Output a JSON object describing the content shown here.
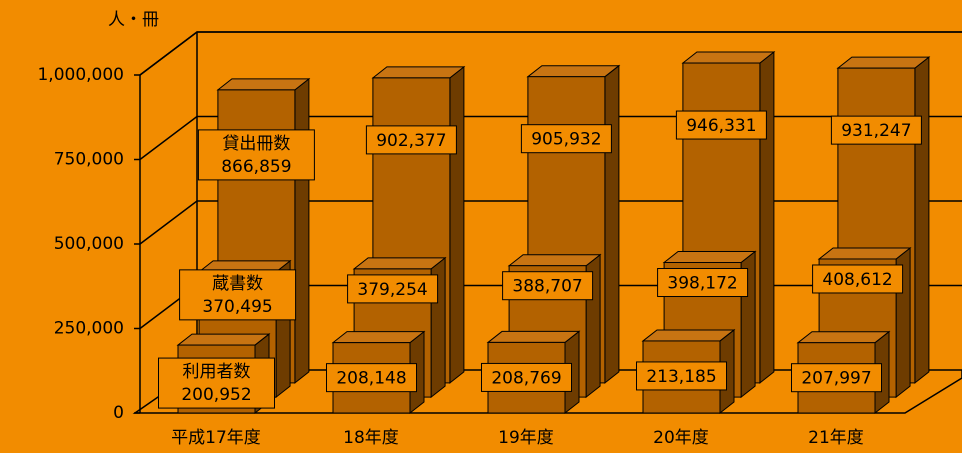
{
  "chart_data": {
    "type": "bar3d",
    "y_axis_label": "人・冊",
    "categories": [
      "平成17年度",
      "18年度",
      "19年度",
      "20年度",
      "21年度"
    ],
    "series": [
      {
        "name": "貸出冊数",
        "color": "#b36200",
        "values": [
          866859,
          902377,
          905932,
          946331,
          931247
        ],
        "value_labels": [
          "866,859",
          "902,377",
          "905,932",
          "946,331",
          "931,247"
        ]
      },
      {
        "name": "蔵書数",
        "color": "#b36200",
        "values": [
          370495,
          379254,
          388707,
          398172,
          408612
        ],
        "value_labels": [
          "370,495",
          "379,254",
          "388,707",
          "398,172",
          "408,612"
        ]
      },
      {
        "name": "利用者数",
        "color": "#b36200",
        "values": [
          200952,
          208148,
          208769,
          213185,
          207997
        ],
        "value_labels": [
          "200,952",
          "208,148",
          "208,769",
          "213,185",
          "207,997"
        ]
      }
    ],
    "ylim": [
      0,
      1000000
    ],
    "yticks": [
      0,
      {
        "value": 250000,
        "label": "250,000"
      },
      {
        "value": 500000,
        "label": "500,000"
      },
      {
        "value": 750000,
        "label": "750,000"
      },
      {
        "value": 1000000,
        "label": "1,000,000"
      }
    ],
    "grid": true
  }
}
